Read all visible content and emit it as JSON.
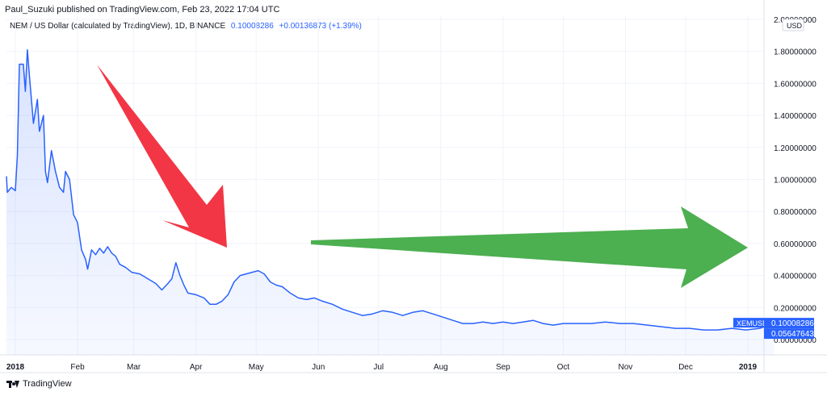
{
  "header": {
    "publisher": "Paul_Suzuki published on TradingView.com, Feb 23, 2022 17:04 UTC",
    "legend_title": "NEM / US Dollar (calculated by TradingView), 1D, BINANCE",
    "legend_value": "0.10008286",
    "legend_change": "+0.00136873 (+1.39%)"
  },
  "footer": {
    "brand": "TradingView"
  },
  "chart_data": {
    "type": "area",
    "symbol": "XEMUSD",
    "currency": "USD",
    "x_tick_labels": [
      "2018",
      "Feb",
      "Mar",
      "Apr",
      "May",
      "Jun",
      "Jul",
      "Aug",
      "Sep",
      "Oct",
      "Nov",
      "Dec",
      "2019"
    ],
    "y_tick_labels": [
      "2.00000000",
      "1.80000000",
      "1.60000000",
      "1.40000000",
      "1.20000000",
      "1.00000000",
      "0.80000000",
      "0.60000000",
      "0.40000000",
      "0.20000000",
      "0.00000000"
    ],
    "ylim": [
      -0.03,
      2.0
    ],
    "grid": true,
    "x_date_range": [
      "2017-12-26",
      "2019-01-17"
    ],
    "last_price_label": "0.10008286",
    "second_price_label": "0.05647643",
    "series": [
      {
        "points": [
          [
            "2017-12-26",
            1.02
          ],
          [
            "2017-12-28",
            0.92
          ],
          [
            "2017-12-30",
            0.95
          ],
          [
            "2018-01-01",
            0.93
          ],
          [
            "2018-01-02",
            1.15
          ],
          [
            "2018-01-03",
            1.72
          ],
          [
            "2018-01-05",
            1.72
          ],
          [
            "2018-01-06",
            1.55
          ],
          [
            "2018-01-07",
            1.81
          ],
          [
            "2018-01-08",
            1.65
          ],
          [
            "2018-01-10",
            1.35
          ],
          [
            "2018-01-12",
            1.5
          ],
          [
            "2018-01-13",
            1.3
          ],
          [
            "2018-01-15",
            1.4
          ],
          [
            "2018-01-16",
            1.05
          ],
          [
            "2018-01-17",
            0.98
          ],
          [
            "2018-01-19",
            1.18
          ],
          [
            "2018-01-21",
            1.05
          ],
          [
            "2018-01-23",
            0.95
          ],
          [
            "2018-01-25",
            0.92
          ],
          [
            "2018-01-26",
            1.05
          ],
          [
            "2018-01-28",
            1.0
          ],
          [
            "2018-01-30",
            0.78
          ],
          [
            "2018-02-01",
            0.73
          ],
          [
            "2018-02-03",
            0.56
          ],
          [
            "2018-02-05",
            0.5
          ],
          [
            "2018-02-06",
            0.44
          ],
          [
            "2018-02-08",
            0.56
          ],
          [
            "2018-02-10",
            0.53
          ],
          [
            "2018-02-12",
            0.57
          ],
          [
            "2018-02-14",
            0.54
          ],
          [
            "2018-02-16",
            0.58
          ],
          [
            "2018-02-18",
            0.54
          ],
          [
            "2018-02-20",
            0.52
          ],
          [
            "2018-02-22",
            0.47
          ],
          [
            "2018-02-25",
            0.45
          ],
          [
            "2018-02-28",
            0.42
          ],
          [
            "2018-03-04",
            0.41
          ],
          [
            "2018-03-08",
            0.38
          ],
          [
            "2018-03-12",
            0.35
          ],
          [
            "2018-03-15",
            0.31
          ],
          [
            "2018-03-18",
            0.35
          ],
          [
            "2018-03-20",
            0.38
          ],
          [
            "2018-03-22",
            0.48
          ],
          [
            "2018-03-24",
            0.4
          ],
          [
            "2018-03-26",
            0.34
          ],
          [
            "2018-03-28",
            0.29
          ],
          [
            "2018-04-01",
            0.28
          ],
          [
            "2018-04-05",
            0.26
          ],
          [
            "2018-04-08",
            0.22
          ],
          [
            "2018-04-11",
            0.22
          ],
          [
            "2018-04-14",
            0.24
          ],
          [
            "2018-04-17",
            0.28
          ],
          [
            "2018-04-20",
            0.36
          ],
          [
            "2018-04-23",
            0.4
          ],
          [
            "2018-04-26",
            0.41
          ],
          [
            "2018-04-29",
            0.42
          ],
          [
            "2018-05-02",
            0.43
          ],
          [
            "2018-05-05",
            0.41
          ],
          [
            "2018-05-08",
            0.36
          ],
          [
            "2018-05-11",
            0.34
          ],
          [
            "2018-05-14",
            0.33
          ],
          [
            "2018-05-18",
            0.29
          ],
          [
            "2018-05-22",
            0.26
          ],
          [
            "2018-05-26",
            0.25
          ],
          [
            "2018-05-30",
            0.26
          ],
          [
            "2018-06-03",
            0.24
          ],
          [
            "2018-06-08",
            0.22
          ],
          [
            "2018-06-13",
            0.19
          ],
          [
            "2018-06-18",
            0.17
          ],
          [
            "2018-06-23",
            0.15
          ],
          [
            "2018-06-28",
            0.16
          ],
          [
            "2018-07-03",
            0.18
          ],
          [
            "2018-07-08",
            0.17
          ],
          [
            "2018-07-13",
            0.15
          ],
          [
            "2018-07-18",
            0.17
          ],
          [
            "2018-07-23",
            0.18
          ],
          [
            "2018-07-28",
            0.16
          ],
          [
            "2018-08-02",
            0.14
          ],
          [
            "2018-08-07",
            0.12
          ],
          [
            "2018-08-12",
            0.1
          ],
          [
            "2018-08-17",
            0.1
          ],
          [
            "2018-08-22",
            0.11
          ],
          [
            "2018-08-27",
            0.1
          ],
          [
            "2018-09-01",
            0.11
          ],
          [
            "2018-09-06",
            0.1
          ],
          [
            "2018-09-11",
            0.11
          ],
          [
            "2018-09-16",
            0.12
          ],
          [
            "2018-09-21",
            0.1
          ],
          [
            "2018-09-26",
            0.09
          ],
          [
            "2018-10-01",
            0.1
          ],
          [
            "2018-10-08",
            0.1
          ],
          [
            "2018-10-15",
            0.1
          ],
          [
            "2018-10-22",
            0.11
          ],
          [
            "2018-10-29",
            0.1
          ],
          [
            "2018-11-05",
            0.1
          ],
          [
            "2018-11-12",
            0.09
          ],
          [
            "2018-11-19",
            0.08
          ],
          [
            "2018-11-26",
            0.07
          ],
          [
            "2018-12-03",
            0.07
          ],
          [
            "2018-12-10",
            0.06
          ],
          [
            "2018-12-17",
            0.06
          ],
          [
            "2018-12-24",
            0.07
          ],
          [
            "2018-12-31",
            0.06
          ],
          [
            "2019-01-07",
            0.07
          ],
          [
            "2019-01-14",
            0.1
          ]
        ]
      }
    ]
  },
  "annotations": {
    "red_arrow_color": "#f23645",
    "green_arrow_color": "#4caf50",
    "line_color": "#2962ff"
  }
}
